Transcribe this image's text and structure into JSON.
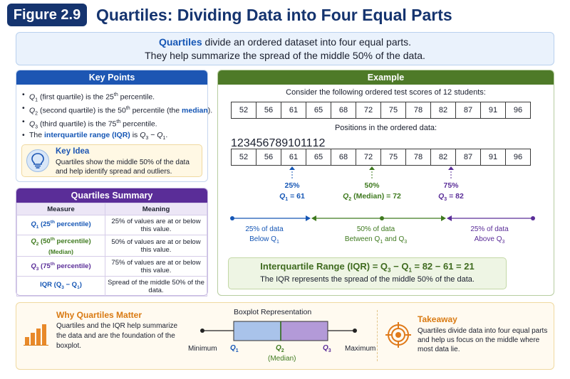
{
  "header": {
    "badge": "Figure 2.9",
    "title": "Quartiles: Dividing Data into Four Equal Parts"
  },
  "intro": {
    "term": "Quartiles",
    "line1_rest": " divide an ordered dataset into four equal parts.",
    "line2": "They help summarize the spread of the middle 50% of the data."
  },
  "key_points": {
    "title": "Key Points",
    "items": [
      {
        "q": "Q",
        "sub": "1",
        "mid": " (first quartile) is the 25",
        "sup": "th",
        "end": " percentile."
      },
      {
        "q": "Q",
        "sub": "2",
        "mid": " (second quartile) is the 50",
        "sup": "th",
        "end": " percentile (the ",
        "hl": "median",
        "tail": ")."
      },
      {
        "q": "Q",
        "sub": "3",
        "mid": " (third quartile) is the 75",
        "sup": "th",
        "end": " percentile."
      }
    ],
    "iqr_prefix": "The ",
    "iqr_term": "interquartile range (IQR)",
    "iqr_mid": " is ",
    "iqr_formula_a": "Q",
    "iqr_formula_a_sub": "3",
    "iqr_formula_minus": " − ",
    "iqr_formula_b": "Q",
    "iqr_formula_b_sub": "1",
    "iqr_end": ".",
    "idea_title": "Key Idea",
    "idea_text": "Quartiles show the middle 50% of the data and help identify spread and outliers."
  },
  "summary": {
    "title": "Quartiles Summary",
    "col_measure": "Measure",
    "col_meaning": "Meaning",
    "rows": [
      {
        "m": "Q",
        "sub": "1",
        "m_rest": " (25",
        "sup": "th",
        "m_end": " percentile)",
        "m2": "",
        "meaning": "25% of values are at or below this value.",
        "color": "#1556b5"
      },
      {
        "m": "Q",
        "sub": "2",
        "m_rest": " (50",
        "sup": "th",
        "m_end": " percentile)",
        "m2": "(Median)",
        "meaning": "50% of values are at or below this value.",
        "color": "#3f7a1f"
      },
      {
        "m": "Q",
        "sub": "3",
        "m_rest": " (75",
        "sup": "th",
        "m_end": " percentile)",
        "m2": "",
        "meaning": "75% of values are at or below this value.",
        "color": "#5a2d98"
      },
      {
        "m": "IQR (Q",
        "sub": "3",
        "m_rest": " − Q",
        "sup": "",
        "m_end": ")",
        "m2": "",
        "sub2": "1",
        "meaning": "Spread of the middle 50% of the data.",
        "color": "#1556b5"
      }
    ]
  },
  "example": {
    "title": "Example",
    "caption1": "Consider the following ordered test scores of 12 students:",
    "scores": [
      "52",
      "56",
      "61",
      "65",
      "68",
      "72",
      "75",
      "78",
      "82",
      "87",
      "91",
      "96"
    ],
    "caption2": "Positions in the ordered data:",
    "positions": [
      "1",
      "2",
      "3",
      "4",
      "5",
      "6",
      "7",
      "8",
      "9",
      "10",
      "11",
      "12"
    ],
    "q1": {
      "pct": "25%",
      "label": "Q",
      "sub": "1",
      "val": " = 61",
      "color": "#1556b5"
    },
    "q2": {
      "pct": "50%",
      "label": "Q",
      "sub": "2",
      "val": " (Median) = 72",
      "color": "#3f7a1f"
    },
    "q3": {
      "pct": "75%",
      "label": "Q",
      "sub": "3",
      "val": " = 82",
      "color": "#5a2d98"
    },
    "seg1_a": "25% of data",
    "seg1_b": "Below Q",
    "seg1_sub": "1",
    "seg2_a": "50% of data",
    "seg2_b": "Between Q",
    "seg2_sub": "1",
    "seg2_c": " and Q",
    "seg2_sub2": "3",
    "seg3_a": "25% of data",
    "seg3_b": "Above Q",
    "seg3_sub": "3",
    "iqr_line_a": "Interquartile Range (IQR) = Q",
    "iqr_line_sub1": "3",
    "iqr_line_b": " − Q",
    "iqr_line_sub2": "1",
    "iqr_line_c": "  = 82 − 61 = 21",
    "iqr_note": "The IQR represents the spread of the middle 50% of the data."
  },
  "bottom": {
    "why_title": "Why Quartiles Matter",
    "why_text": "Quartiles and the IQR help summarize the data and are the foundation of the boxplot.",
    "bp_title": "Boxplot Representation",
    "bp_min": "Minimum",
    "bp_max": "Maximum",
    "bp_q": "Q",
    "bp_q1_sub": "1",
    "bp_q2_sub": "2",
    "bp_q3_sub": "3",
    "bp_median": "(Median)",
    "take_title": "Takeaway",
    "take_text": "Quartiles divide data into four equal parts and help us focus on the middle where most data lie."
  },
  "colors": {
    "navy": "#15346f",
    "blue": "#1d56b3",
    "purple": "#5a2d98",
    "green": "#4e7a28",
    "orange": "#d97a12"
  }
}
